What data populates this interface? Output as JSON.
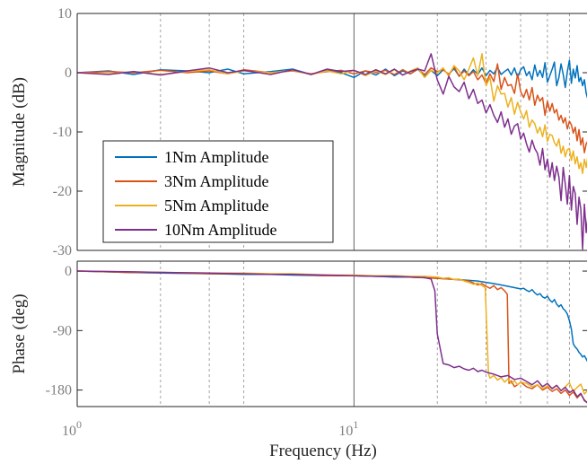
{
  "chart_data": [
    {
      "type": "line",
      "ylabel": "Magnitude (dB)",
      "xscale": "log",
      "xlim": [
        1.0,
        70.0
      ],
      "ylim": [
        -30,
        10
      ],
      "yticks": [
        10,
        0,
        -10,
        -20,
        -30
      ],
      "xgrid_dashed": [
        2,
        3,
        4,
        20,
        30,
        40,
        50,
        60
      ],
      "xgrid_solid": [
        10
      ],
      "legend": {
        "position": "lower-left"
      },
      "series": [
        {
          "name": "1Nm Amplitude",
          "color": "#0072BD",
          "x": [
            1,
            1.3,
            1.6,
            2,
            2.5,
            3,
            3.5,
            4,
            5,
            6,
            7,
            8,
            9,
            10,
            11,
            12,
            13,
            14,
            15,
            16,
            17,
            18,
            19,
            20,
            21,
            22,
            23,
            24,
            25,
            26,
            27,
            28,
            29,
            30,
            31,
            32,
            33,
            34,
            35,
            36,
            37,
            38,
            39,
            40,
            41,
            42,
            43,
            44,
            45,
            46,
            47,
            48,
            49,
            50,
            51,
            52,
            53,
            54,
            55,
            56,
            57,
            58,
            59,
            60,
            61,
            62,
            63,
            64,
            65,
            66,
            67,
            68,
            69,
            70
          ],
          "y": [
            0,
            0.3,
            -0.3,
            0.5,
            0.3,
            0,
            0.6,
            -0.2,
            0.2,
            0.6,
            -0.3,
            0.4,
            0,
            -0.8,
            0.3,
            -0.4,
            0.6,
            -0.5,
            0.3,
            -0.2,
            0.6,
            -0.6,
            0.4,
            -0.5,
            0.5,
            -0.3,
            0.7,
            -0.6,
            0.6,
            -0.4,
            0.5,
            -0.3,
            0.8,
            -0.5,
            0.4,
            -0.2,
            0.9,
            -0.3,
            0.2,
            0.6,
            -0.4,
            0.8,
            -0.8,
            0.5,
            1,
            -0.5,
            0.2,
            -1.2,
            1.3,
            -0.6,
            0.4,
            -0.8,
            1.7,
            -1.6,
            -0.5,
            0.6,
            1.8,
            -2.2,
            -0.8,
            1.5,
            -0.3,
            -2.5,
            0.2,
            2.1,
            -1.8,
            0.6,
            -0.9,
            1.2,
            -1.5,
            -0.8,
            -2.2,
            -1.2,
            -3.5,
            -4.5
          ]
        },
        {
          "name": "3Nm Amplitude",
          "color": "#D95319",
          "x": [
            1,
            1.3,
            1.6,
            2,
            2.5,
            3,
            3.5,
            4,
            5,
            6,
            7,
            8,
            9,
            10,
            11,
            12,
            13,
            14,
            15,
            16,
            17,
            18,
            19,
            20,
            21,
            22,
            23,
            24,
            25,
            26,
            27,
            28,
            29,
            30,
            31,
            32,
            33,
            34,
            35,
            36,
            37,
            38,
            39,
            40,
            41,
            42,
            43,
            44,
            45,
            46,
            47,
            48,
            49,
            50,
            51,
            52,
            53,
            54,
            55,
            56,
            57,
            58,
            59,
            60,
            61,
            62,
            63,
            64,
            65,
            66,
            67,
            68,
            69,
            70
          ],
          "y": [
            0,
            0.2,
            0,
            0.4,
            0,
            0.3,
            -0.2,
            0.5,
            0,
            0.3,
            -0.2,
            0.2,
            0.4,
            -0.2,
            0.3,
            0,
            0.4,
            -0.3,
            0.5,
            -0.2,
            0.6,
            -0.3,
            0.8,
            0.2,
            0.5,
            -0.3,
            1,
            -0.6,
            0.3,
            -0.5,
            0.2,
            -1.2,
            -0.4,
            -1.8,
            -0.2,
            -1.5,
            1.5,
            -2.8,
            -0.8,
            -2.2,
            -2,
            -3.5,
            -0.2,
            -3.2,
            -4.2,
            -2.8,
            -4.6,
            -2.5,
            -5.5,
            -3.8,
            -4.8,
            -4.2,
            -7.2,
            -4.8,
            -6.5,
            -5.2,
            -6.8,
            -6.2,
            -8,
            -7.2,
            -8.5,
            -7.6,
            -9.5,
            -8.2,
            -8.8,
            -10.2,
            -9.2,
            -11.5,
            -9.6,
            -12.2,
            -11,
            -13.5,
            -12,
            -11.5
          ]
        },
        {
          "name": "5Nm Amplitude",
          "color": "#EDB120",
          "x": [
            1,
            1.3,
            1.6,
            2,
            2.5,
            3,
            3.5,
            4,
            5,
            6,
            7,
            8,
            9,
            10,
            11,
            12,
            13,
            14,
            15,
            16,
            17,
            18,
            19,
            20,
            21,
            22,
            23,
            24,
            25,
            26,
            27,
            28,
            29,
            30,
            31,
            32,
            33,
            34,
            35,
            36,
            37,
            38,
            39,
            40,
            41,
            42,
            43,
            44,
            45,
            46,
            47,
            48,
            49,
            50,
            51,
            52,
            53,
            54,
            55,
            56,
            57,
            58,
            59,
            60,
            61,
            62,
            63,
            64,
            65,
            66,
            67,
            68,
            69,
            70
          ],
          "y": [
            0,
            -0.2,
            0.2,
            -0.3,
            0.2,
            0.5,
            -0.2,
            0.3,
            0,
            0.4,
            -0.3,
            0.3,
            -0.2,
            0.4,
            -0.5,
            0.3,
            -0.3,
            0.5,
            -0.4,
            0.3,
            0.8,
            -0.8,
            0.4,
            0,
            0.8,
            -0.6,
            1.2,
            0.3,
            -1.2,
            0.6,
            2.5,
            -0.5,
            3.2,
            -2.2,
            -0.8,
            -4.8,
            -2.2,
            -3.6,
            -3.5,
            -5.8,
            -4.2,
            -7,
            -5,
            -6.6,
            -7.8,
            -6.4,
            -9.2,
            -8,
            -8.6,
            -10.2,
            -9.2,
            -10.8,
            -8.8,
            -11.6,
            -10.4,
            -10.6,
            -11.8,
            -12.4,
            -11.2,
            -13.6,
            -12.4,
            -14.2,
            -13,
            -12.8,
            -14.8,
            -13.2,
            -15.4,
            -14.2,
            -16.2,
            -15.2,
            -17,
            -14.6,
            -16,
            -14
          ]
        },
        {
          "name": "10Nm Amplitude",
          "color": "#7E2F8E",
          "x": [
            1,
            1.3,
            1.6,
            2,
            2.5,
            3,
            3.5,
            4,
            5,
            6,
            7,
            8,
            9,
            10,
            11,
            12,
            13,
            14,
            15,
            16,
            17,
            18,
            19,
            20,
            21,
            22,
            23,
            24,
            25,
            26,
            27,
            28,
            29,
            30,
            31,
            32,
            33,
            34,
            35,
            36,
            37,
            38,
            39,
            40,
            41,
            42,
            43,
            44,
            45,
            46,
            47,
            48,
            49,
            50,
            51,
            52,
            53,
            54,
            55,
            56,
            57,
            58,
            59,
            60,
            61,
            62,
            63,
            64,
            65,
            66,
            67,
            68,
            69,
            70
          ],
          "y": [
            0,
            -0.3,
            0.2,
            -0.4,
            0.3,
            0.8,
            0,
            0.4,
            -0.3,
            0.5,
            -0.3,
            0.6,
            0.2,
            0.4,
            -0.3,
            0.5,
            -0.2,
            0.6,
            -0.4,
            0.2,
            0.6,
            0.3,
            3.2,
            -1.2,
            -3.6,
            -0.6,
            -2.4,
            -3.2,
            -1.6,
            -4.4,
            -2.8,
            -5.2,
            -4.6,
            -6.8,
            -5.4,
            -7.2,
            -8.4,
            -6.6,
            -9.2,
            -7.8,
            -10.4,
            -9,
            -8.6,
            -11.2,
            -10.2,
            -12,
            -13.4,
            -11.4,
            -12.8,
            -13.6,
            -15.6,
            -12.8,
            -16.4,
            -14.6,
            -17.6,
            -15.2,
            -18.2,
            -15.8,
            -17.6,
            -21.6,
            -16,
            -18.8,
            -22.2,
            -17.4,
            -23.2,
            -19.2,
            -20.4,
            -25.6,
            -21,
            -23,
            -29.8,
            -22.2,
            -27,
            -24
          ]
        }
      ]
    },
    {
      "type": "line",
      "ylabel": "Phase (deg)",
      "xlabel": "Frequency  (Hz)",
      "xscale": "log",
      "xlim": [
        1.0,
        70.0
      ],
      "ylim": [
        -205,
        15
      ],
      "yticks": [
        0,
        -90,
        -180
      ],
      "xtick_labels": [
        {
          "x": 1,
          "base": "10",
          "exp": "0"
        },
        {
          "x": 10,
          "base": "10",
          "exp": "1"
        }
      ],
      "xgrid_dashed": [
        2,
        3,
        4,
        20,
        30,
        40,
        50,
        60
      ],
      "xgrid_solid": [
        10
      ],
      "series": [
        {
          "name": "1Nm Amplitude",
          "color": "#0072BD",
          "x": [
            1,
            1.5,
            2,
            3,
            4,
            5,
            6,
            8,
            10,
            12,
            14,
            16,
            18,
            20,
            22,
            24,
            26,
            28,
            30,
            32,
            34,
            36,
            38,
            40,
            41,
            42,
            43,
            44,
            45,
            46,
            47,
            48,
            49,
            50,
            51,
            52,
            53,
            54,
            55,
            56,
            57,
            58,
            59,
            60,
            61,
            62,
            63,
            64,
            65,
            66,
            67,
            68,
            69,
            70
          ],
          "y": [
            0,
            -2,
            -3,
            -4,
            -5,
            -5,
            -6,
            -7,
            -7,
            -8,
            -9,
            -9,
            -10,
            -11,
            -12,
            -13,
            -14,
            -15,
            -17,
            -19,
            -21,
            -23,
            -25,
            -27,
            -26,
            -29,
            -31,
            -28,
            -33,
            -36,
            -34,
            -39,
            -41,
            -38,
            -44,
            -47,
            -43,
            -50,
            -54,
            -51,
            -57,
            -60,
            -65,
            -75,
            -88,
            -110,
            -115,
            -118,
            -123,
            -126,
            -130,
            -128,
            -133,
            -138
          ]
        },
        {
          "name": "3Nm Amplitude",
          "color": "#D95319",
          "x": [
            1,
            1.5,
            2,
            3,
            4,
            5,
            6,
            8,
            10,
            12,
            14,
            16,
            18,
            20,
            22,
            24,
            26,
            27,
            28,
            29,
            30,
            31,
            32,
            33,
            34,
            35,
            35.8,
            36.3,
            37,
            38,
            39,
            40,
            42,
            44,
            46,
            48,
            50,
            52,
            54,
            56,
            58,
            60,
            62,
            64,
            66,
            68,
            70
          ],
          "y": [
            0,
            -2,
            -2,
            -4,
            -4,
            -5,
            -5,
            -7,
            -7,
            -8,
            -8,
            -9,
            -10,
            -11,
            -12,
            -13,
            -15,
            -18,
            -21,
            -19,
            -23,
            -26,
            -22,
            -28,
            -25,
            -30,
            -35,
            -170,
            -166,
            -175,
            -172,
            -168,
            -175,
            -178,
            -172,
            -180,
            -176,
            -182,
            -178,
            -185,
            -180,
            -188,
            -183,
            -192,
            -186,
            -195,
            -200
          ]
        },
        {
          "name": "5Nm Amplitude",
          "color": "#EDB120",
          "x": [
            1,
            1.5,
            2,
            3,
            4,
            5,
            6,
            8,
            10,
            12,
            14,
            16,
            18,
            20,
            21,
            22,
            23,
            24,
            25,
            26,
            27,
            28,
            29,
            29.8,
            30.6,
            31,
            32,
            33,
            34,
            35,
            36,
            37,
            38,
            39,
            40,
            42,
            44,
            46,
            48,
            50,
            52,
            54,
            56,
            58,
            60,
            62,
            64,
            66,
            68,
            70
          ],
          "y": [
            0,
            -1,
            -2,
            -3,
            -3,
            -4,
            -4,
            -6,
            -6,
            -7,
            -7,
            -8,
            -8,
            -9,
            -11,
            -10,
            -13,
            -12,
            -15,
            -17,
            -20,
            -18,
            -22,
            -25,
            -155,
            -162,
            -158,
            -165,
            -161,
            -168,
            -163,
            -170,
            -166,
            -172,
            -168,
            -170,
            -175,
            -172,
            -178,
            -174,
            -177,
            -173,
            -181,
            -175,
            -169,
            -182,
            -176,
            -171,
            -186,
            -180
          ]
        },
        {
          "name": "10Nm Amplitude",
          "color": "#7E2F8E",
          "x": [
            1,
            1.5,
            2,
            3,
            4,
            5,
            6,
            8,
            10,
            12,
            14,
            16,
            18,
            19,
            19.6,
            20,
            21,
            22,
            23,
            24,
            25,
            26,
            27,
            28,
            29,
            30,
            32,
            34,
            36,
            38,
            40,
            42,
            44,
            46,
            48,
            50,
            52,
            54,
            56,
            58,
            60,
            62,
            64,
            66,
            68,
            70
          ],
          "y": [
            0,
            -1,
            -2,
            -3,
            -4,
            -5,
            -5,
            -6,
            -7,
            -8,
            -8,
            -9,
            -10,
            -12,
            -30,
            -95,
            -140,
            -142,
            -146,
            -144,
            -148,
            -150,
            -147,
            -152,
            -150,
            -153,
            -156,
            -160,
            -158,
            -164,
            -162,
            -167,
            -172,
            -166,
            -175,
            -170,
            -178,
            -173,
            -181,
            -176,
            -184,
            -180,
            -190,
            -185,
            -196,
            -200
          ]
        }
      ]
    }
  ]
}
